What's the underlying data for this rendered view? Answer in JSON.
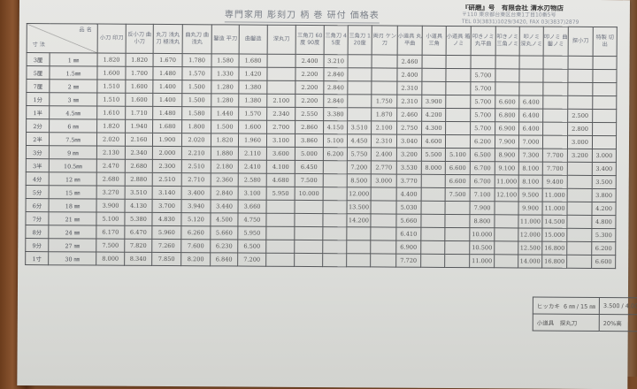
{
  "document": {
    "title": "専門家用 彫刻刀 柄 巻 研付 価格表",
    "company": {
      "name": "『研磨』号　有限会社 清水刃物店",
      "address": "〒110 東京都台東区台東1丁目10番5号",
      "phone": "TEL 03(3831)1029/3420, FAX 03(3837)2879"
    }
  },
  "table": {
    "corner_top": "品 名",
    "corner_bottom": "寸 法",
    "columns": [
      "小刀 印刀",
      "反小刀 曲小刀",
      "丸刀 浅丸刀 極浅丸",
      "曲丸刀 曲浅丸",
      "鑿造 平刀",
      "曲鑿造",
      "深丸刀",
      "三角刀 60度 90度",
      "三角刀 45度",
      "三角刀 120度",
      "両刃 ケン刀",
      "小道具 丸平曲",
      "小道具 三角",
      "小道具 箱ノミ",
      "叩きノミ 丸平曲",
      "叩きノミ 三角ノミ",
      "叩ノミ 深丸ノミ",
      "叩ノミ 曲鑿ノミ",
      "探小刀",
      "特製 切出"
    ],
    "rows": [
      {
        "bu": "3厘",
        "mm": "1 ㎜",
        "prices": [
          "1.820",
          "1.820",
          "1.670",
          "1.780",
          "1.580",
          "1.680",
          "",
          "2.400",
          "3.210",
          "",
          "",
          "2.460",
          "",
          "",
          "",
          "",
          "",
          "",
          "",
          ""
        ]
      },
      {
        "bu": "5厘",
        "mm": "1.5㎜",
        "prices": [
          "1.600",
          "1.700",
          "1.480",
          "1.570",
          "1.330",
          "1.420",
          "",
          "2.200",
          "2.840",
          "",
          "",
          "2.400",
          "",
          "",
          "5.700",
          "",
          "",
          "",
          "",
          ""
        ]
      },
      {
        "bu": "7厘",
        "mm": "2 ㎜",
        "prices": [
          "1.510",
          "1.600",
          "1.400",
          "1.500",
          "1.280",
          "1.380",
          "",
          "2.200",
          "2.840",
          "",
          "",
          "2.310",
          "",
          "",
          "5.700",
          "",
          "",
          "",
          "",
          ""
        ]
      },
      {
        "bu": "1分",
        "mm": "3 ㎜",
        "prices": [
          "1.510",
          "1.600",
          "1.400",
          "1.500",
          "1.280",
          "1.380",
          "2.100",
          "2.200",
          "2.840",
          "",
          "1.750",
          "2.310",
          "3.900",
          "",
          "5.700",
          "6.600",
          "6.400",
          "",
          "",
          ""
        ]
      },
      {
        "bu": "1半",
        "mm": "4.5㎜",
        "prices": [
          "1.610",
          "1.710",
          "1.480",
          "1.580",
          "1.440",
          "1.570",
          "2.340",
          "2.550",
          "3.380",
          "",
          "1.870",
          "2.460",
          "4.200",
          "",
          "5.700",
          "6.800",
          "6.400",
          "",
          "2.500",
          ""
        ]
      },
      {
        "bu": "2分",
        "mm": "6 ㎜",
        "prices": [
          "1.820",
          "1.940",
          "1.680",
          "1.800",
          "1.500",
          "1.600",
          "2.700",
          "2.860",
          "4.150",
          "3.510",
          "2.100",
          "2.750",
          "4.300",
          "",
          "5.700",
          "6.900",
          "6.400",
          "",
          "2.800",
          ""
        ]
      },
      {
        "bu": "2半",
        "mm": "7.5㎜",
        "prices": [
          "2.020",
          "2.160",
          "1.900",
          "2.020",
          "1.820",
          "1.960",
          "3.100",
          "3.860",
          "5.100",
          "4.450",
          "2.310",
          "3.040",
          "4.600",
          "",
          "6.200",
          "7.900",
          "7.000",
          "",
          "3.000",
          ""
        ]
      },
      {
        "bu": "3分",
        "mm": "9 ㎜",
        "prices": [
          "2.130",
          "2.340",
          "2.000",
          "2.210",
          "1.880",
          "2.110",
          "3.600",
          "5.000",
          "6.200",
          "5.750",
          "2.400",
          "3.200",
          "5.500",
          "5.100",
          "6.500",
          "8.900",
          "7.300",
          "7.700",
          "3.200",
          "3.000"
        ]
      },
      {
        "bu": "3半",
        "mm": "10.5㎜",
        "prices": [
          "2.470",
          "2.680",
          "2.300",
          "2.510",
          "2.180",
          "2.410",
          "4.100",
          "6.450",
          "",
          "7.200",
          "2.770",
          "3.530",
          "8.000",
          "6.600",
          "6.700",
          "9.100",
          "8.100",
          "7.700",
          "",
          "3.400"
        ]
      },
      {
        "bu": "4分",
        "mm": "12 ㎜",
        "prices": [
          "2.680",
          "2.880",
          "2.510",
          "2.710",
          "2.360",
          "2.580",
          "4.680",
          "7.500",
          "",
          "8.500",
          "3.000",
          "3.770",
          "",
          "6.600",
          "6.700",
          "11.000",
          "8.100",
          "9.400",
          "",
          "3.500"
        ]
      },
      {
        "bu": "5分",
        "mm": "15 ㎜",
        "prices": [
          "3.270",
          "3.510",
          "3.140",
          "3.400",
          "2.840",
          "3.100",
          "5.950",
          "10.000",
          "",
          "12.000",
          "",
          "4.400",
          "",
          "7.500",
          "7.100",
          "12.100",
          "9.500",
          "11.000",
          "",
          "3.800"
        ]
      },
      {
        "bu": "6分",
        "mm": "18 ㎜",
        "prices": [
          "3.900",
          "4.130",
          "3.700",
          "3.940",
          "3.440",
          "3.660",
          "",
          "",
          "",
          "13.500",
          "",
          "5.030",
          "",
          "",
          "7.900",
          "",
          "9.900",
          "11.000",
          "",
          "4.200"
        ]
      },
      {
        "bu": "7分",
        "mm": "21 ㎜",
        "prices": [
          "5.100",
          "5.380",
          "4.830",
          "5.120",
          "4.500",
          "4.750",
          "",
          "",
          "",
          "14.200",
          "",
          "5.660",
          "",
          "",
          "8.800",
          "",
          "11.000",
          "14.500",
          "",
          "4.800"
        ]
      },
      {
        "bu": "8分",
        "mm": "24 ㎜",
        "prices": [
          "6.170",
          "6.470",
          "5.960",
          "6.260",
          "5.660",
          "5.950",
          "",
          "",
          "",
          "",
          "",
          "6.410",
          "",
          "",
          "10.000",
          "",
          "12.000",
          "15.000",
          "",
          "5.300"
        ]
      },
      {
        "bu": "9分",
        "mm": "27 ㎜",
        "prices": [
          "7.500",
          "7.820",
          "7.260",
          "7.600",
          "6.230",
          "6.500",
          "",
          "",
          "",
          "",
          "",
          "6.900",
          "",
          "",
          "10.500",
          "",
          "12.500",
          "16.800",
          "",
          "6.200"
        ]
      },
      {
        "bu": "1寸",
        "mm": "30 ㎜",
        "prices": [
          "8.000",
          "8.340",
          "7.850",
          "8.200",
          "6.840",
          "7.200",
          "",
          "",
          "",
          "",
          "",
          "7.720",
          "",
          "",
          "11.000",
          "",
          "14.000",
          "16.800",
          "",
          "6.600"
        ]
      }
    ]
  },
  "extra": {
    "hikkaki_label": "ヒッカキ",
    "hikkaki_sizes": "6 ㎜ / 15 ㎜",
    "hikkaki_prices": "3.500 / 4.000",
    "kodougu_label": "小道具　探丸刀",
    "kodougu_value": "20%高"
  }
}
